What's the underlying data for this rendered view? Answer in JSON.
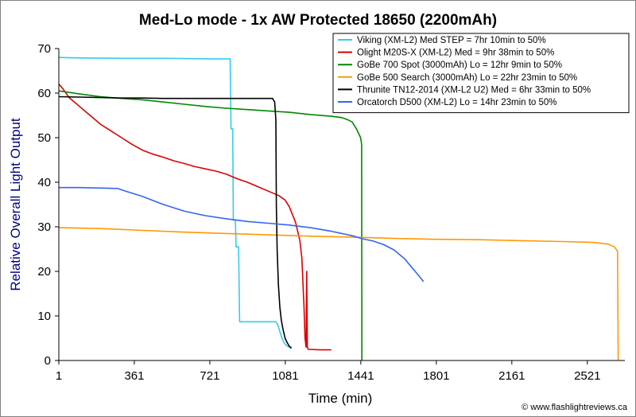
{
  "chart_data": {
    "type": "line",
    "title": "Med-Lo mode - 1x AW Protected 18650 (2200mAh)",
    "xlabel": "Time (min)",
    "ylabel": "Relative Overall Light Output",
    "xlim": [
      1,
      2700
    ],
    "ylim": [
      0,
      70
    ],
    "x_ticks": [
      1,
      361,
      721,
      1081,
      1441,
      1801,
      2161,
      2521
    ],
    "y_ticks": [
      0,
      10,
      20,
      30,
      40,
      50,
      60,
      70
    ],
    "grid": false,
    "legend_position": "top-right",
    "credit": "© www.flashlightreviews.ca",
    "axis_color": "#000080",
    "series": [
      {
        "name": "Viking (XM-L2) Med STEP = 7hr 10min to 50%",
        "color": "#33ccee",
        "points": [
          [
            1,
            68
          ],
          [
            100,
            67.9
          ],
          [
            300,
            67.8
          ],
          [
            500,
            67.8
          ],
          [
            700,
            67.7
          ],
          [
            818,
            67.7
          ],
          [
            822,
            52
          ],
          [
            830,
            52
          ],
          [
            833,
            31.5
          ],
          [
            843,
            31.5
          ],
          [
            846,
            25.5
          ],
          [
            858,
            25.5
          ],
          [
            863,
            8.7
          ],
          [
            900,
            8.7
          ],
          [
            990,
            8.7
          ],
          [
            1035,
            8.7
          ],
          [
            1045,
            8
          ],
          [
            1055,
            6.5
          ],
          [
            1065,
            5
          ],
          [
            1075,
            4
          ],
          [
            1085,
            3.4
          ],
          [
            1100,
            3
          ],
          [
            1110,
            2.7
          ]
        ]
      },
      {
        "name": "Olight M20S-X (XM-L2) Med = 9hr 38min to 50%",
        "color": "#dd0000",
        "points": [
          [
            1,
            62
          ],
          [
            20,
            61
          ],
          [
            50,
            59
          ],
          [
            100,
            57
          ],
          [
            150,
            55
          ],
          [
            200,
            53
          ],
          [
            250,
            51.5
          ],
          [
            300,
            50
          ],
          [
            350,
            48.5
          ],
          [
            400,
            47.2
          ],
          [
            450,
            46.3
          ],
          [
            500,
            45.6
          ],
          [
            550,
            44.8
          ],
          [
            600,
            44.2
          ],
          [
            650,
            43.5
          ],
          [
            700,
            43
          ],
          [
            750,
            42.5
          ],
          [
            800,
            41.8
          ],
          [
            850,
            40.8
          ],
          [
            900,
            40
          ],
          [
            950,
            39
          ],
          [
            1000,
            38
          ],
          [
            1050,
            37
          ],
          [
            1080,
            36
          ],
          [
            1100,
            34.5
          ],
          [
            1130,
            31
          ],
          [
            1150,
            27
          ],
          [
            1160,
            23
          ],
          [
            1170,
            12
          ],
          [
            1175,
            5
          ],
          [
            1180,
            3
          ],
          [
            1183,
            20
          ],
          [
            1186,
            3
          ],
          [
            1190,
            2.5
          ],
          [
            1250,
            2.4
          ],
          [
            1300,
            2.4
          ]
        ]
      },
      {
        "name": "GoBe 700 Spot (3000mAh) Lo = 12hr 9min to 50%",
        "color": "#008800",
        "points": [
          [
            1,
            60.5
          ],
          [
            100,
            59.8
          ],
          [
            200,
            59.2
          ],
          [
            300,
            58.8
          ],
          [
            400,
            58.5
          ],
          [
            500,
            58
          ],
          [
            600,
            57.5
          ],
          [
            700,
            57
          ],
          [
            800,
            56.6
          ],
          [
            900,
            56.3
          ],
          [
            1000,
            56
          ],
          [
            1100,
            55.7
          ],
          [
            1200,
            55.2
          ],
          [
            1300,
            54.8
          ],
          [
            1350,
            54.5
          ],
          [
            1380,
            54
          ],
          [
            1400,
            53.5
          ],
          [
            1420,
            52
          ],
          [
            1440,
            50
          ],
          [
            1445,
            48.5
          ],
          [
            1446,
            0
          ]
        ]
      },
      {
        "name": "GoBe 500 Search (3000mAh) Lo = 22hr 23min to 50%",
        "color": "#ff9900",
        "points": [
          [
            1,
            29.8
          ],
          [
            200,
            29.6
          ],
          [
            400,
            29.2
          ],
          [
            600,
            28.8
          ],
          [
            800,
            28.5
          ],
          [
            1000,
            28.2
          ],
          [
            1200,
            27.9
          ],
          [
            1400,
            27.7
          ],
          [
            1600,
            27.4
          ],
          [
            1800,
            27.2
          ],
          [
            2000,
            27.1
          ],
          [
            2200,
            26.9
          ],
          [
            2400,
            26.7
          ],
          [
            2550,
            26.5
          ],
          [
            2620,
            26.1
          ],
          [
            2650,
            25.5
          ],
          [
            2665,
            24.5
          ],
          [
            2668,
            0
          ]
        ]
      },
      {
        "name": "Thrunite TN12-2014 (XM-L2 U2) Med = 6hr 33min to 50%",
        "color": "#000000",
        "points": [
          [
            1,
            59.2
          ],
          [
            100,
            59.1
          ],
          [
            200,
            59
          ],
          [
            300,
            58.9
          ],
          [
            400,
            58.9
          ],
          [
            500,
            58.8
          ],
          [
            600,
            58.8
          ],
          [
            700,
            58.8
          ],
          [
            800,
            58.8
          ],
          [
            900,
            58.8
          ],
          [
            980,
            58.8
          ],
          [
            1020,
            58.8
          ],
          [
            1030,
            58
          ],
          [
            1036,
            54
          ],
          [
            1038,
            35
          ],
          [
            1042,
            25
          ],
          [
            1048,
            17
          ],
          [
            1055,
            12
          ],
          [
            1062,
            9
          ],
          [
            1070,
            7
          ],
          [
            1080,
            5
          ],
          [
            1090,
            4
          ],
          [
            1100,
            3.2
          ],
          [
            1110,
            2.8
          ]
        ]
      },
      {
        "name": "Orcatorch D500 (XM-L2) Lo = 14hr 23min to 50%",
        "color": "#3366ee",
        "points": [
          [
            1,
            38.8
          ],
          [
            100,
            38.8
          ],
          [
            200,
            38.7
          ],
          [
            280,
            38.6
          ],
          [
            320,
            38
          ],
          [
            400,
            36.8
          ],
          [
            500,
            35
          ],
          [
            600,
            33.5
          ],
          [
            700,
            32.5
          ],
          [
            800,
            31.8
          ],
          [
            900,
            31.2
          ],
          [
            1000,
            30.8
          ],
          [
            1100,
            30.4
          ],
          [
            1200,
            29.8
          ],
          [
            1300,
            29
          ],
          [
            1400,
            28
          ],
          [
            1450,
            27.3
          ],
          [
            1500,
            26.8
          ],
          [
            1550,
            26
          ],
          [
            1600,
            24.8
          ],
          [
            1650,
            22.8
          ],
          [
            1700,
            20
          ],
          [
            1740,
            17.7
          ]
        ]
      }
    ]
  }
}
